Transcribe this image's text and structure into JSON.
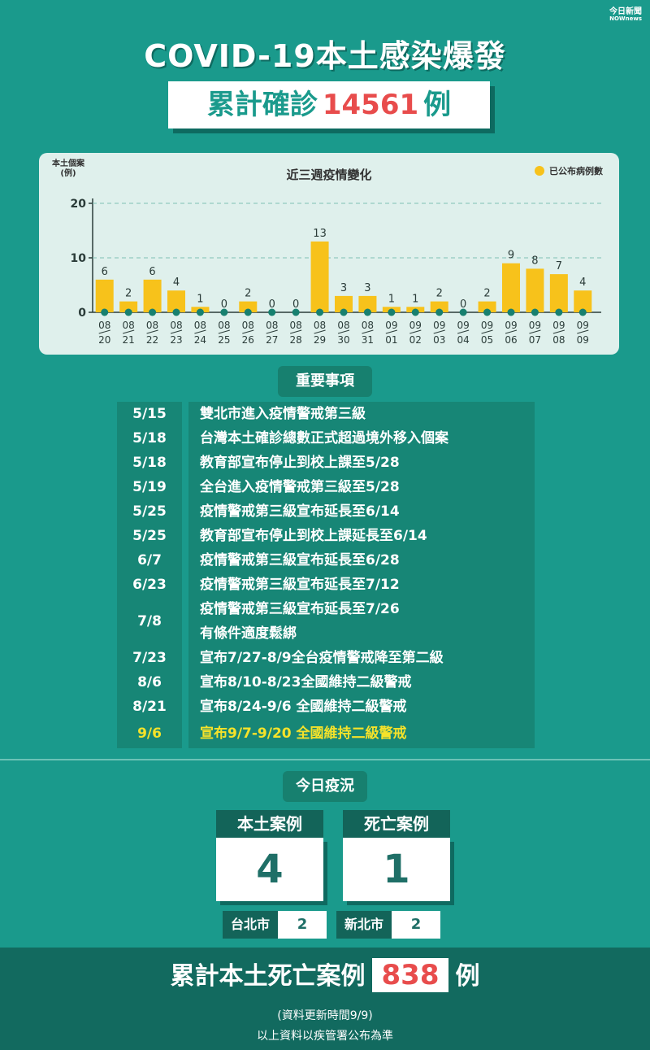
{
  "brand": {
    "line1": "今日新聞",
    "line2": "NOWnews"
  },
  "title": "COVID-19本土感染爆發",
  "total": {
    "prefix": "累計確診",
    "number": "14561",
    "suffix": "例"
  },
  "chart_data": {
    "type": "bar",
    "title": "近三週疫情變化",
    "ylabel": "本土個案(例)",
    "legend": "已公布病例數",
    "legend_position": "top-right",
    "ylim": [
      0,
      20
    ],
    "yticks": [
      0,
      10,
      20
    ],
    "grid": true,
    "categories": [
      "08/20",
      "08/21",
      "08/22",
      "08/23",
      "08/24",
      "08/25",
      "08/26",
      "08/27",
      "08/28",
      "08/29",
      "08/30",
      "08/31",
      "09/01",
      "09/02",
      "09/03",
      "09/04",
      "09/05",
      "09/06",
      "09/07",
      "09/08",
      "09/09"
    ],
    "values": [
      6,
      2,
      6,
      4,
      1,
      0,
      2,
      0,
      0,
      13,
      3,
      3,
      1,
      1,
      2,
      0,
      2,
      9,
      8,
      7,
      4
    ],
    "bar_color": "#f7c21b"
  },
  "events_title": "重要事項",
  "events": [
    {
      "date": "5/15",
      "text": [
        "雙北市進入疫情警戒第三級"
      ]
    },
    {
      "date": "5/18",
      "text": [
        "台灣本土確診總數正式超過境外移入個案"
      ]
    },
    {
      "date": "5/18",
      "text": [
        "教育部宣布停止到校上課至5/28"
      ]
    },
    {
      "date": "5/19",
      "text": [
        "全台進入疫情警戒第三級至5/28"
      ]
    },
    {
      "date": "5/25",
      "text": [
        "疫情警戒第三級宣布延長至6/14"
      ]
    },
    {
      "date": "5/25",
      "text": [
        "教育部宣布停止到校上課延長至6/14"
      ]
    },
    {
      "date": "6/7",
      "text": [
        "疫情警戒第三級宣布延長至6/28"
      ]
    },
    {
      "date": "6/23",
      "text": [
        "疫情警戒第三級宣布延長至7/12"
      ]
    },
    {
      "date": "7/8",
      "text": [
        "疫情警戒第三級宣布延長至7/26",
        "有條件適度鬆綁"
      ]
    },
    {
      "date": "7/23",
      "text": [
        "宣布7/27-8/9全台疫情警戒降至第二級"
      ]
    },
    {
      "date": "8/6",
      "text": [
        "宣布8/10-8/23全國維持二級警戒"
      ]
    },
    {
      "date": "8/21",
      "text": [
        "宣布8/24-9/6 全國維持二級警戒"
      ]
    },
    {
      "date": "9/6",
      "text": [
        "宣布9/7-9/20 全國維持二級警戒"
      ],
      "highlight": true
    }
  ],
  "today_title": "今日疫況",
  "local": {
    "label": "本土案例",
    "value": "4"
  },
  "deaths": {
    "label": "死亡案例",
    "value": "1"
  },
  "cities": [
    {
      "name": "台北市",
      "value": "2"
    },
    {
      "name": "新北市",
      "value": "2"
    }
  ],
  "cumulative_deaths": {
    "prefix": "累計本土死亡案例",
    "number": "838",
    "suffix": "例"
  },
  "update_note": "(資料更新時間9/9)",
  "source_note": "以上資料以疾管署公布為準",
  "colors": {
    "background": "#1a9a8c",
    "accent_red": "#e84c4c",
    "highlight_yellow": "#f5e22a",
    "bar": "#f7c21b"
  }
}
